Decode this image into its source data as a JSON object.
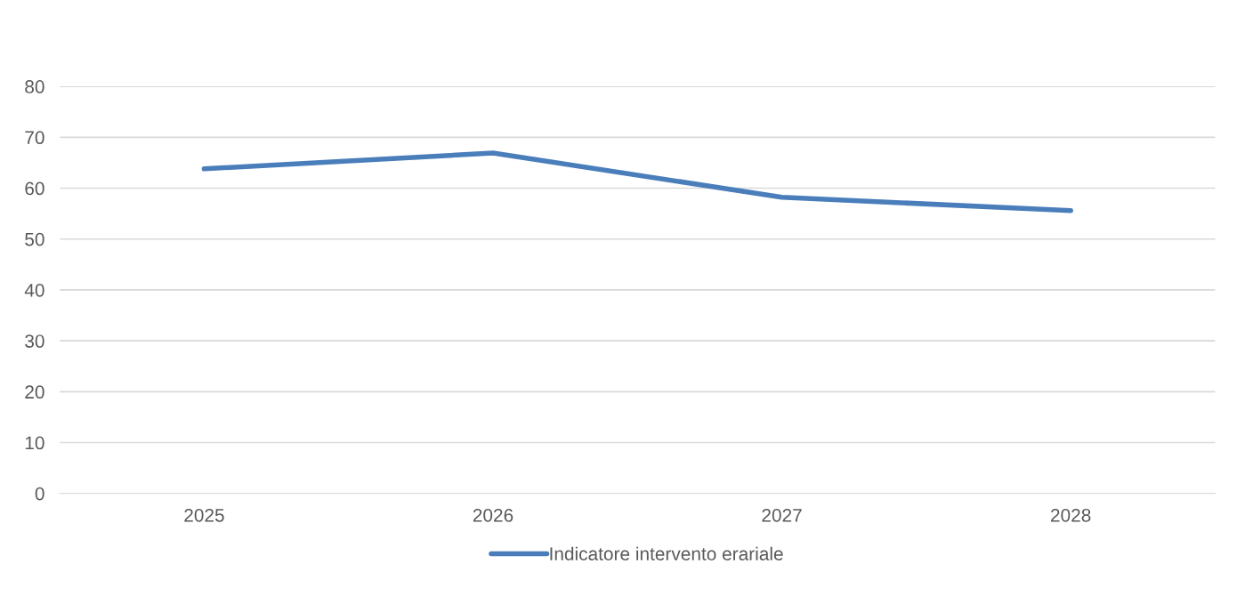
{
  "chart_data": {
    "type": "line",
    "categories": [
      "2025",
      "2026",
      "2027",
      "2028"
    ],
    "series": [
      {
        "name": "Indicatore intervento erariale",
        "color": "#4a7ebb",
        "values": [
          63.8,
          66.9,
          58.2,
          55.6
        ]
      }
    ],
    "ylim": [
      0,
      80
    ],
    "yticks": [
      0,
      10,
      20,
      30,
      40,
      50,
      60,
      70,
      80
    ],
    "grid": "y",
    "legend": "bottom",
    "marker": "none",
    "line_style": "solid"
  }
}
